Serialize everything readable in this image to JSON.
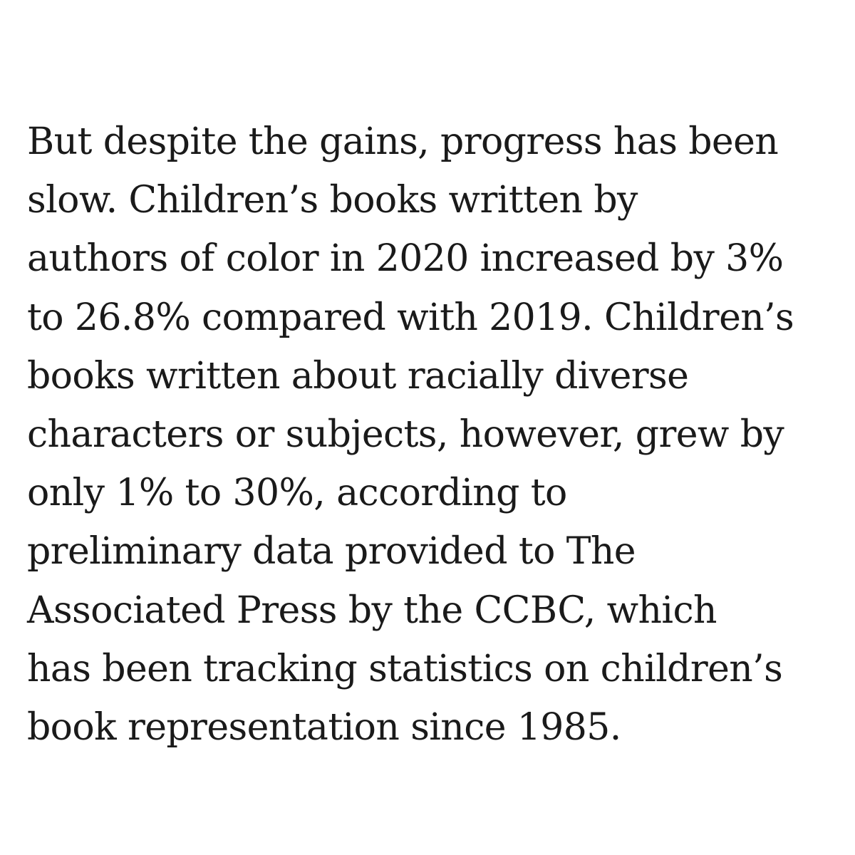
{
  "article": {
    "lines": [
      "But despite the gains, progress has been",
      "slow. Children’s books written by",
      "authors of color in 2020 increased by 3%",
      "to 26.8% compared with 2019. Children’s",
      "books written about racially diverse",
      "characters or subjects, however, grew by",
      "only 1% to 30%, according to",
      "preliminary data provided to The",
      "Associated Press by the CCBC, which",
      "has been tracking statistics on children’s",
      "book representation since 1985."
    ]
  }
}
